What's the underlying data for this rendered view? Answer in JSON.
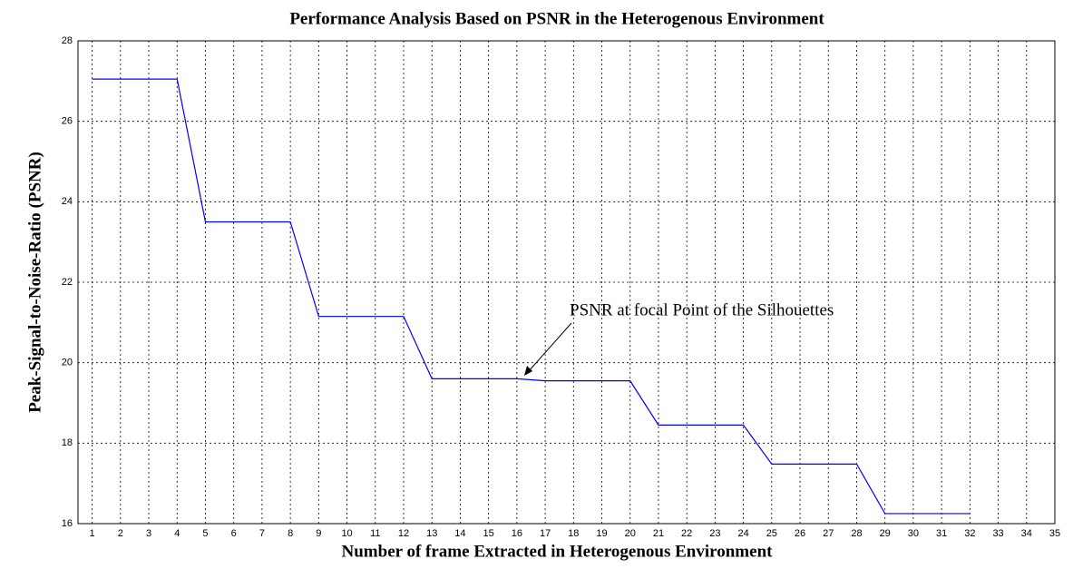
{
  "chart_data": {
    "type": "line",
    "title": "Performance Analysis Based on PSNR in the Heterogenous Environment",
    "x_label": "Number of frame Extracted in Heterogenous Environment",
    "y_label": "Peak-Signal-to-Noise-Ratio (PSNR)",
    "annotation": "PSNR at focal Point of the Silhouettes",
    "x": [
      1,
      2,
      3,
      4,
      5,
      6,
      7,
      8,
      9,
      10,
      11,
      12,
      13,
      14,
      15,
      16,
      17,
      18,
      19,
      20,
      21,
      22,
      23,
      24,
      25,
      26,
      27,
      28,
      29,
      30,
      31,
      32
    ],
    "series": [
      {
        "name": "PSNR",
        "color": "#0000ff",
        "values": [
          27.05,
          27.05,
          27.05,
          27.05,
          23.5,
          23.5,
          23.5,
          23.5,
          21.15,
          21.15,
          21.15,
          21.15,
          19.6,
          19.6,
          19.6,
          19.6,
          19.55,
          19.55,
          19.55,
          19.55,
          18.45,
          18.45,
          18.45,
          18.45,
          17.48,
          17.48,
          17.48,
          17.48,
          16.25,
          16.25,
          16.25,
          16.25
        ]
      }
    ],
    "xlim": [
      0.5,
      35
    ],
    "xticks": [
      1,
      2,
      3,
      4,
      5,
      6,
      7,
      8,
      9,
      10,
      11,
      12,
      13,
      14,
      15,
      16,
      17,
      18,
      19,
      20,
      21,
      22,
      23,
      24,
      25,
      26,
      27,
      28,
      29,
      30,
      31,
      32,
      33,
      34,
      35
    ],
    "ylim": [
      16,
      28
    ],
    "yticks": [
      16,
      18,
      20,
      22,
      24,
      26,
      28
    ],
    "grid": true
  }
}
